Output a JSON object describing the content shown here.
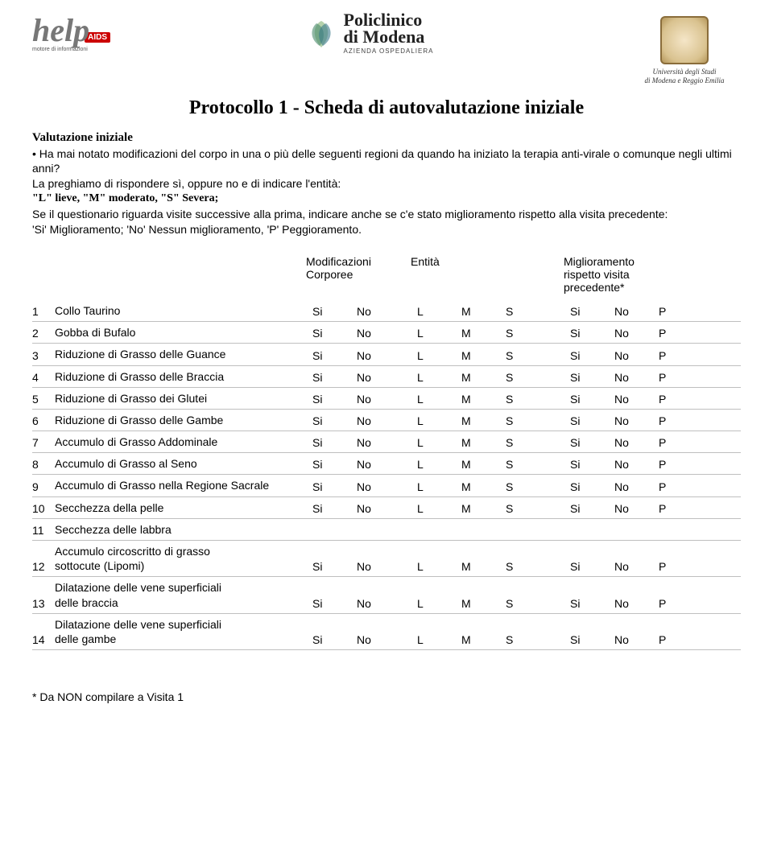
{
  "logos": {
    "help_main": "help",
    "help_badge": "AIDS",
    "help_sub": "motore di informazioni",
    "policlinico_line1": "Policlinico",
    "policlinico_line2": "di Modena",
    "policlinico_sub": "AZIENDA OSPEDALIERA",
    "uni_line1": "Università degli Studi",
    "uni_line2": "di Modena e Reggio Emilia"
  },
  "title": "Protocollo 1 - Scheda di autovalutazione iniziale",
  "subheading": "Valutazione iniziale",
  "intro": {
    "p1": "• Ha mai notato modificazioni del corpo in una o più delle seguenti regioni da quando ha iniziato la terapia anti-virale o comunque negli ultimi anni?",
    "p2a": "La preghiamo di rispondere sì, oppure no e di indicare l'entità:",
    "p2b": "\"L\" lieve, \"M\" moderato, \"S\" Severa;",
    "p3": "Se il questionario riguarda visite successive alla prima, indicare anche se c'e stato miglioramento rispetto alla visita precedente:",
    "p4": "'Si' Miglioramento; 'No' Nessun miglioramento, 'P' Peggioramento."
  },
  "col_headers": {
    "c1a": "Modificazioni",
    "c1b": "Corporee",
    "c2": "Entità",
    "c3a": "Miglioramento",
    "c3b": "rispetto visita",
    "c3c": "precedente*"
  },
  "option_labels": {
    "si": "Si",
    "no": "No",
    "l": "L",
    "m": "M",
    "s": "S",
    "p": "P"
  },
  "rows": [
    {
      "num": "1",
      "label": "Collo Taurino",
      "opts": true
    },
    {
      "num": "2",
      "label": "Gobba di Bufalo",
      "opts": true
    },
    {
      "num": "3",
      "label": "Riduzione di Grasso delle Guance",
      "opts": true
    },
    {
      "num": "4",
      "label": "Riduzione di Grasso delle Braccia",
      "opts": true
    },
    {
      "num": "5",
      "label": "Riduzione di Grasso dei Glutei",
      "opts": true
    },
    {
      "num": "6",
      "label": "Riduzione di Grasso delle Gambe",
      "opts": true
    },
    {
      "num": "7",
      "label": "Accumulo di Grasso Addominale",
      "opts": true
    },
    {
      "num": "8",
      "label": "Accumulo di Grasso al Seno",
      "opts": true
    },
    {
      "num": "9",
      "label": "Accumulo di Grasso nella Regione Sacrale",
      "opts": true
    },
    {
      "num": "10",
      "label": "Secchezza della pelle",
      "opts": true
    },
    {
      "num": "11",
      "label": "Secchezza delle labbra",
      "opts": false
    },
    {
      "num": "12",
      "label": "Accumulo circoscritto di grasso\nsottocute (Lipomi)",
      "opts": true
    },
    {
      "num": "13",
      "label": "Dilatazione delle vene superficiali\ndelle braccia",
      "opts": true
    },
    {
      "num": "14",
      "label": "Dilatazione delle vene superficiali\ndelle gambe",
      "opts": true
    }
  ],
  "footnote": "* Da NON compilare a Visita 1",
  "style": {
    "page_bg": "#ffffff",
    "text_color": "#000000",
    "row_border": "#bfbfbf",
    "title_fontsize": 24,
    "body_fontsize": 14
  }
}
